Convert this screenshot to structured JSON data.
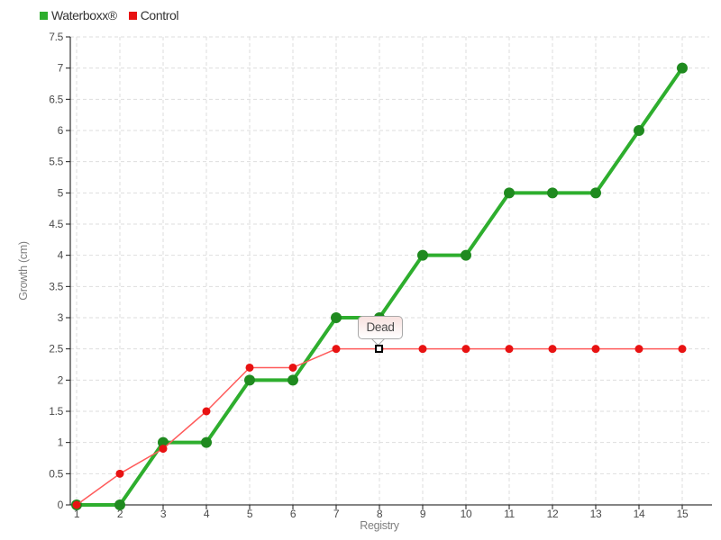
{
  "legend": {
    "items": [
      {
        "label": "Waterboxx®",
        "color": "#2EAE2E"
      },
      {
        "label": "Control",
        "color": "#E81212"
      }
    ]
  },
  "tooltip": {
    "label": "Dead"
  },
  "chart_data": {
    "type": "line",
    "x": [
      1,
      2,
      3,
      4,
      5,
      6,
      7,
      8,
      9,
      10,
      11,
      12,
      13,
      14,
      15
    ],
    "xlabel": "Registry",
    "ylabel": "Growth (cm)",
    "ylim": [
      0,
      7.5
    ],
    "xlim": [
      1,
      15
    ],
    "y_ticks": [
      "0",
      "0.5",
      "1",
      "1.5",
      "2",
      "2.5",
      "3",
      "3.5",
      "4",
      "4.5",
      "5",
      "5.5",
      "6",
      "6.5",
      "7",
      "7.5"
    ],
    "grid": "dashed",
    "legend_position": "top-left",
    "series": [
      {
        "name": "Waterboxx®",
        "slug": "waterboxx",
        "color": "#2EAE2E",
        "bullet_color": "#1F8A1F",
        "line_width": 4,
        "bullet_radius": 6,
        "values": [
          0,
          0,
          1,
          1,
          2,
          2,
          3,
          3,
          4,
          4,
          5,
          5,
          5,
          6,
          7
        ]
      },
      {
        "name": "Control",
        "slug": "control",
        "color": "#FF5B5B",
        "bullet_color": "#E81212",
        "line_width": 1.5,
        "bullet_radius": 4.5,
        "values": [
          0,
          0.5,
          0.9,
          1.5,
          2.2,
          2.2,
          2.5,
          2.5,
          2.5,
          2.5,
          2.5,
          2.5,
          2.5,
          2.5,
          2.5
        ]
      }
    ],
    "annotation": {
      "text": "Dead",
      "series": "Control",
      "x": 8,
      "y": 2.5
    }
  }
}
